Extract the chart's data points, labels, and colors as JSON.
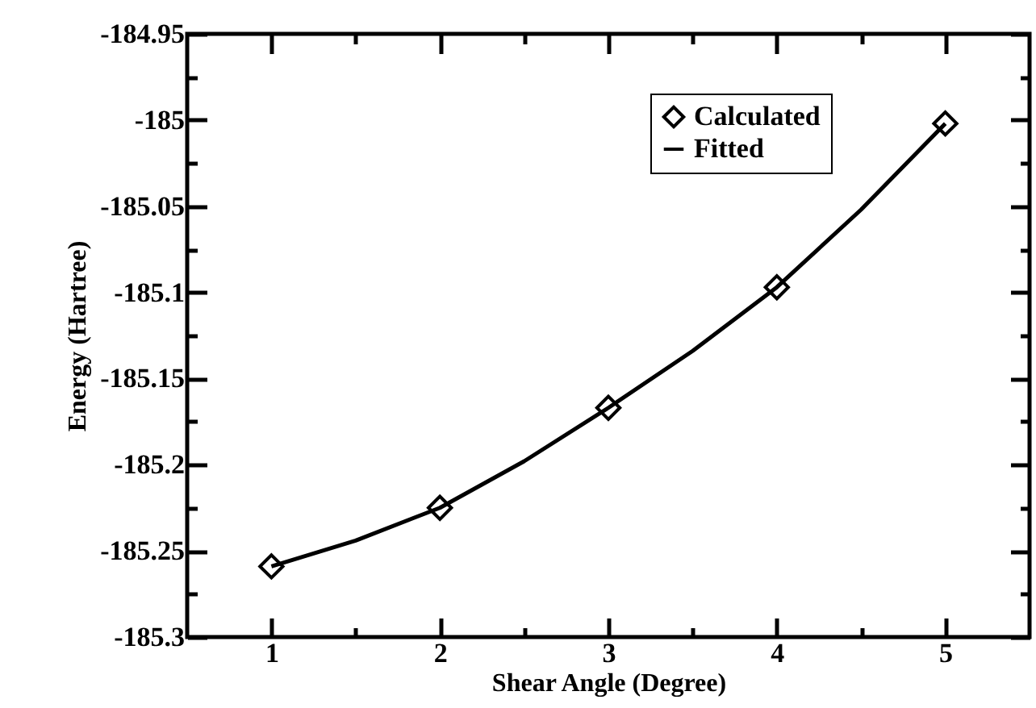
{
  "chart_data": {
    "type": "scatter",
    "xlabel": "Shear Angle (Degree)",
    "ylabel": "Energy (Hartree)",
    "xlim": [
      0.5,
      5.5
    ],
    "ylim": [
      -185.3,
      -184.95
    ],
    "xticks": [
      1,
      2,
      3,
      4,
      5,
      {
        "value": 1.5,
        "label": null
      },
      {
        "value": 2.5,
        "label": null
      },
      {
        "value": 3.5,
        "label": null
      },
      {
        "value": 4.5,
        "label": null
      }
    ],
    "yticks": [
      -185.3,
      -185.25,
      -185.2,
      -185.15,
      -185.1,
      -185.05,
      -185,
      -184.95,
      {
        "value": -185.275,
        "label": null
      },
      {
        "value": -185.225,
        "label": null
      },
      {
        "value": -185.175,
        "label": null
      },
      {
        "value": -185.125,
        "label": null
      },
      {
        "value": -185.075,
        "label": null
      },
      {
        "value": -185.025,
        "label": null
      },
      {
        "value": -184.975,
        "label": null
      }
    ],
    "legend": "top right",
    "grid": false,
    "series": [
      {
        "name": "Calculated",
        "marker": "diamond",
        "color": "#000000",
        "x": [
          1,
          2,
          3,
          4,
          5
        ],
        "values": [
          -185.259,
          -185.225,
          -185.167,
          -185.097,
          -185.002
        ]
      },
      {
        "name": "Fitted",
        "type": "line",
        "line_style": "solid",
        "color": "#000000",
        "x": [
          1,
          1.5,
          2,
          2.5,
          3,
          3.5,
          4,
          4.5,
          5
        ],
        "values": [
          -185.259,
          -185.244,
          -185.225,
          -185.198,
          -185.167,
          -185.134,
          -185.097,
          -185.052,
          -185.002
        ]
      }
    ]
  }
}
